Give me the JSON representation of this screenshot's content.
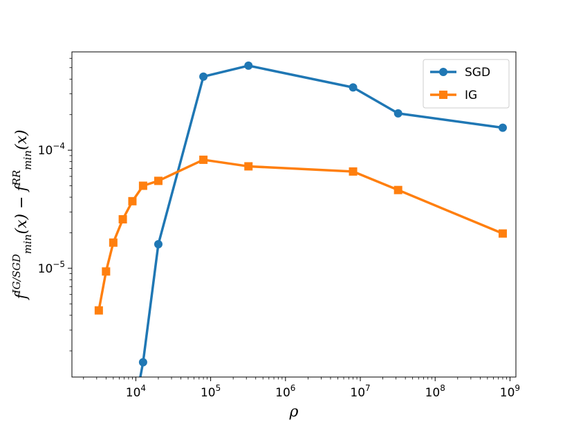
{
  "chart_data": {
    "type": "line",
    "x_scale": "log",
    "y_scale": "log",
    "xlim": [
      1400,
      1200000000
    ],
    "ylim": [
      1.2e-06,
      0.00068
    ],
    "x_ticks": [
      {
        "value": 10000,
        "base": "10",
        "exp": "4"
      },
      {
        "value": 100000,
        "base": "10",
        "exp": "5"
      },
      {
        "value": 1000000,
        "base": "10",
        "exp": "6"
      },
      {
        "value": 10000000,
        "base": "10",
        "exp": "7"
      },
      {
        "value": 100000000,
        "base": "10",
        "exp": "8"
      },
      {
        "value": 1000000000,
        "base": "10",
        "exp": "9"
      }
    ],
    "y_ticks": [
      {
        "value": 1e-05,
        "base": "10",
        "exp": "−5"
      },
      {
        "value": 0.0001,
        "base": "10",
        "exp": "−4"
      }
    ],
    "xlabel": "ρ",
    "ylabel": {
      "parts": [
        {
          "text": "f",
          "role": "base"
        },
        {
          "text": "IG/SGD",
          "role": "sup"
        },
        {
          "text": "min",
          "role": "sub"
        },
        {
          "text": "(x) − ",
          "role": "base"
        },
        {
          "text": "f",
          "role": "base"
        },
        {
          "text": "RR",
          "role": "sup"
        },
        {
          "text": "min",
          "role": "sub"
        },
        {
          "text": "(x)",
          "role": "base"
        }
      ]
    },
    "grid": false,
    "legend_position": "upper right",
    "series": [
      {
        "name": "SGD",
        "color": "#1f77b4",
        "marker": "circle",
        "points": [
          {
            "x": 10000,
            "y": 7.5e-07
          },
          {
            "x": 12500,
            "y": 1.6e-06
          },
          {
            "x": 20000,
            "y": 1.6e-05
          },
          {
            "x": 80000,
            "y": 0.00042
          },
          {
            "x": 320000,
            "y": 0.00052
          },
          {
            "x": 8000000,
            "y": 0.00034
          },
          {
            "x": 32000000,
            "y": 0.000205
          },
          {
            "x": 800000000,
            "y": 0.000155
          }
        ]
      },
      {
        "name": "IG",
        "color": "#ff7f0e",
        "marker": "square",
        "points": [
          {
            "x": 3200,
            "y": 4.4e-06
          },
          {
            "x": 4000,
            "y": 9.4e-06
          },
          {
            "x": 5000,
            "y": 1.65e-05
          },
          {
            "x": 6700,
            "y": 2.6e-05
          },
          {
            "x": 9000,
            "y": 3.7e-05
          },
          {
            "x": 12500,
            "y": 5e-05
          },
          {
            "x": 20000,
            "y": 5.5e-05
          },
          {
            "x": 80000,
            "y": 8.3e-05
          },
          {
            "x": 320000,
            "y": 7.3e-05
          },
          {
            "x": 8000000,
            "y": 6.6e-05
          },
          {
            "x": 32000000,
            "y": 4.6e-05
          },
          {
            "x": 800000000,
            "y": 1.97e-05
          }
        ]
      }
    ]
  }
}
